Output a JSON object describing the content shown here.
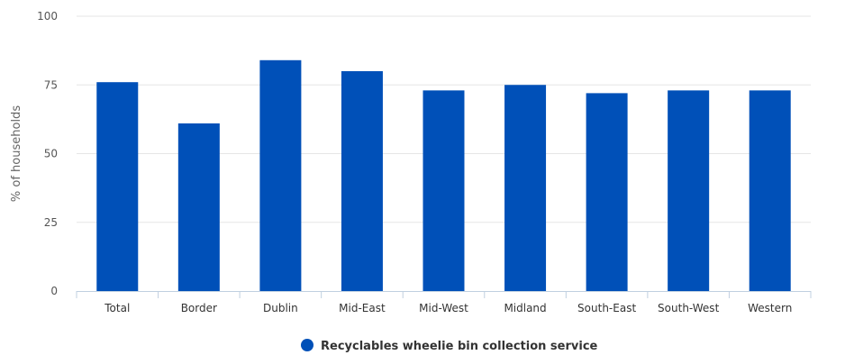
{
  "chart_data": {
    "type": "bar",
    "title": "",
    "xlabel": "",
    "ylabel": "% of households",
    "ylim": [
      0,
      100
    ],
    "yticks": [
      0,
      25,
      50,
      75,
      100
    ],
    "grid": true,
    "legend_position": "bottom-center",
    "categories": [
      "Total",
      "Border",
      "Dublin",
      "Mid-East",
      "Mid-West",
      "Midland",
      "South-East",
      "South-West",
      "Western"
    ],
    "series": [
      {
        "name": "Recyclables wheelie bin collection service",
        "color": "#0050b8",
        "values": [
          76,
          61,
          84,
          80,
          73,
          75,
          72,
          73,
          73
        ]
      }
    ]
  }
}
